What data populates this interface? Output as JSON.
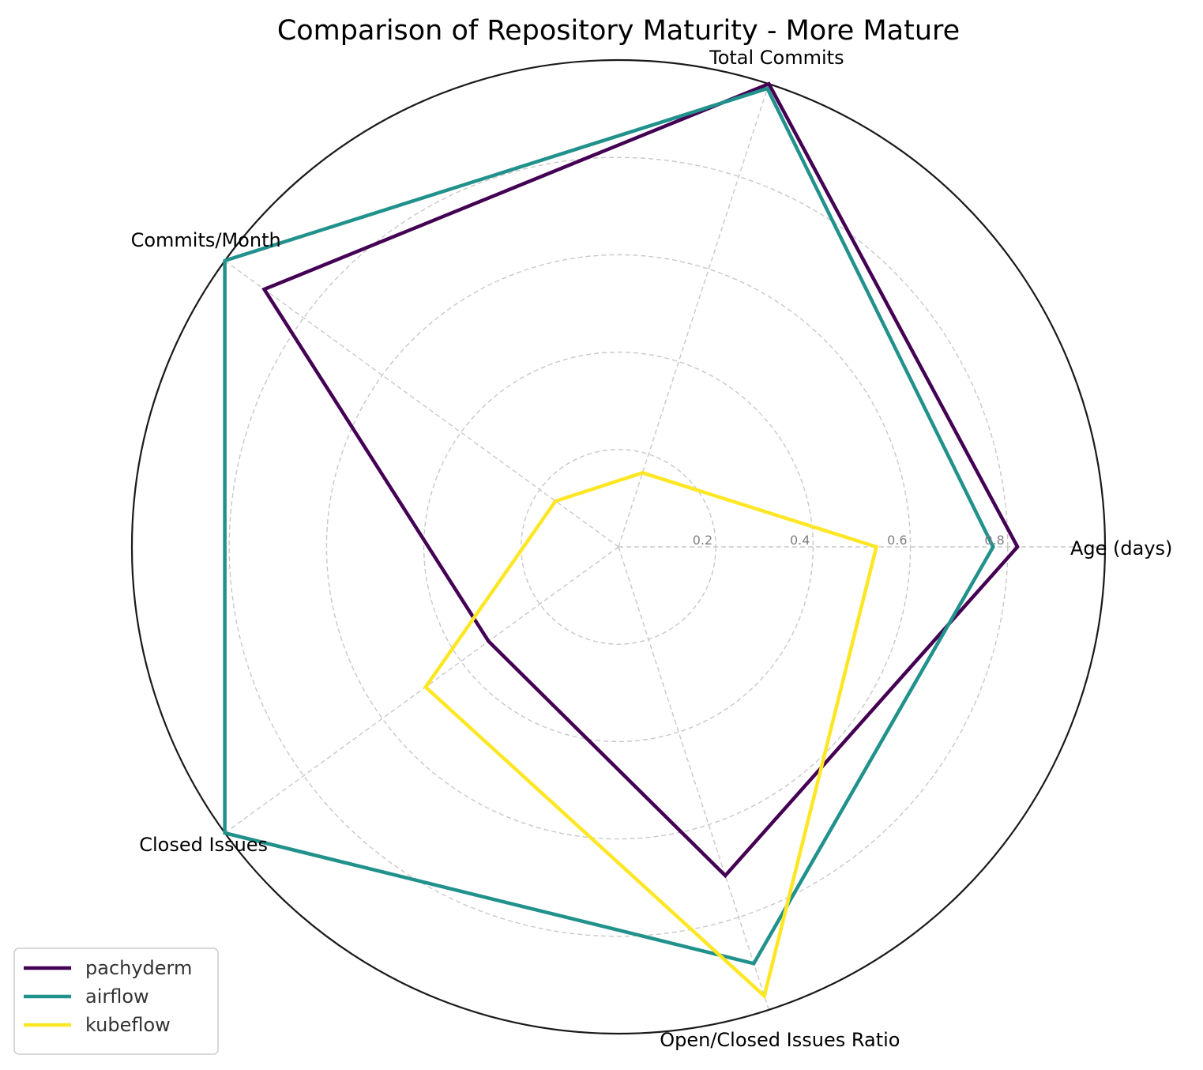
{
  "chart_data": {
    "type": "radar",
    "title": "Comparison of Repository Maturity - More Mature",
    "axes": [
      "Age (days)",
      "Total Commits",
      "Commits/Month",
      "Closed Issues",
      "Open/Closed Issues Ratio"
    ],
    "radial_ticks": [
      "0.2",
      "0.4",
      "0.6",
      "0.8"
    ],
    "rlim": [
      0,
      1
    ],
    "grid": true,
    "legend_position": "lower-left",
    "series": [
      {
        "name": "pachyderm",
        "color": "#440154",
        "values": [
          0.82,
          1.0,
          0.9,
          0.33,
          0.71
        ]
      },
      {
        "name": "airflow",
        "color": "#21918c",
        "values": [
          0.77,
          0.99,
          1.0,
          1.0,
          0.9
        ]
      },
      {
        "name": "kubeflow",
        "color": "#fde725",
        "values": [
          0.53,
          0.16,
          0.16,
          0.49,
          0.97
        ]
      }
    ]
  }
}
